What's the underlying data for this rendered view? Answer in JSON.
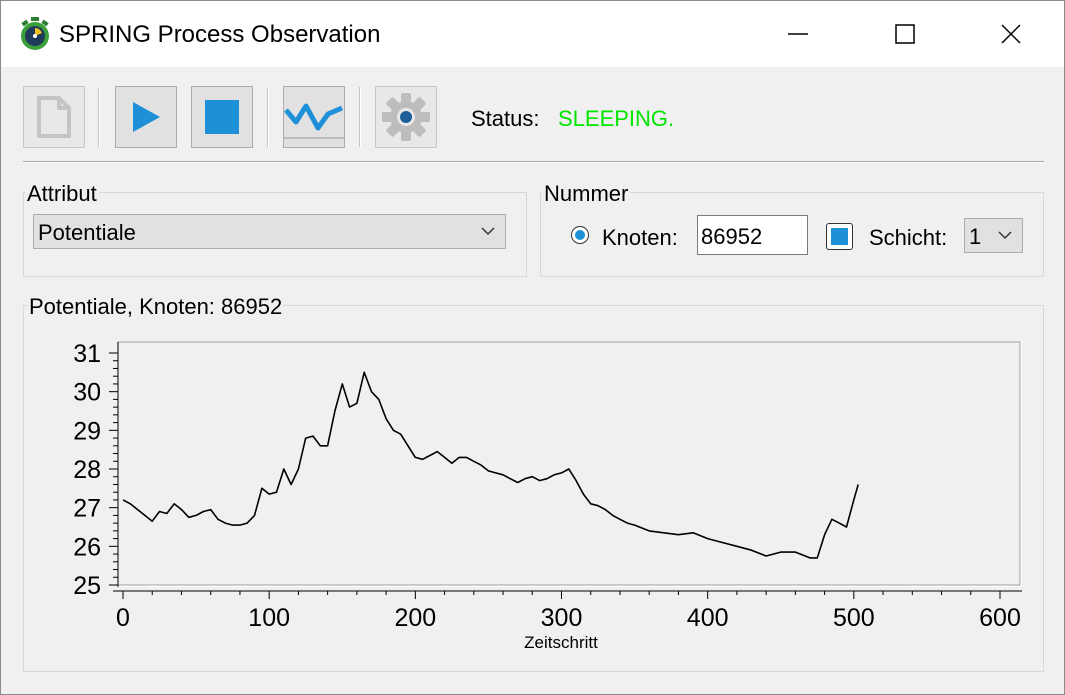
{
  "window": {
    "title": "SPRING Process Observation",
    "icon": "stopwatch-icon",
    "controls": [
      "minimize-icon",
      "maximize-icon",
      "close-icon"
    ]
  },
  "toolbar": {
    "buttons": [
      {
        "name": "new-document",
        "icon": "document-icon",
        "enabled": false
      },
      {
        "name": "play",
        "icon": "play-icon",
        "enabled": true
      },
      {
        "name": "stop",
        "icon": "stop-icon",
        "enabled": true
      },
      {
        "name": "chart",
        "icon": "line-chart-icon",
        "enabled": true
      },
      {
        "name": "settings",
        "icon": "gear-icon",
        "enabled": false
      }
    ],
    "status_label": "Status:",
    "status_value": "SLEEPING.",
    "status_color": "#00e600"
  },
  "attribut": {
    "title": "Attribut",
    "selected": "Potentiale"
  },
  "nummer": {
    "title": "Nummer",
    "knoten_label": "Knoten:",
    "knoten_value": "86952",
    "knoten_selected": true,
    "schicht_checked": true,
    "schicht_label": "Schicht:",
    "schicht_value": "1"
  },
  "accent_color": "#1e90d8",
  "chart_panel_title": "Potentiale, Knoten: 86952",
  "chart_data": {
    "type": "line",
    "title": "",
    "xlabel": "Zeitschritt",
    "ylabel": "",
    "xlim": [
      0,
      600
    ],
    "ylim": [
      25,
      31
    ],
    "xticks": [
      0,
      100,
      200,
      300,
      400,
      500,
      600
    ],
    "yticks": [
      25,
      26,
      27,
      28,
      29,
      30,
      31
    ],
    "grid": false,
    "series": [
      {
        "color": "#000000",
        "x": [
          0,
          5,
          10,
          15,
          20,
          25,
          30,
          35,
          40,
          45,
          50,
          55,
          60,
          65,
          70,
          75,
          80,
          85,
          90,
          95,
          100,
          105,
          110,
          115,
          120,
          125,
          130,
          135,
          140,
          145,
          150,
          155,
          160,
          165,
          170,
          175,
          180,
          185,
          190,
          195,
          200,
          205,
          210,
          215,
          220,
          225,
          230,
          235,
          240,
          245,
          250,
          255,
          260,
          265,
          270,
          275,
          280,
          285,
          290,
          295,
          300,
          305,
          310,
          315,
          320,
          325,
          330,
          335,
          340,
          345,
          350,
          360,
          370,
          380,
          390,
          400,
          410,
          420,
          430,
          440,
          450,
          460,
          470,
          475,
          480,
          485,
          490,
          495,
          500,
          503
        ],
        "values": [
          27.2,
          27.1,
          26.95,
          26.8,
          26.65,
          26.9,
          26.85,
          27.1,
          26.95,
          26.75,
          26.8,
          26.9,
          26.95,
          26.7,
          26.6,
          26.55,
          26.55,
          26.6,
          26.8,
          27.5,
          27.35,
          27.4,
          28.0,
          27.6,
          28.0,
          28.8,
          28.85,
          28.6,
          28.6,
          29.5,
          30.2,
          29.6,
          29.7,
          30.5,
          30.0,
          29.8,
          29.3,
          29.0,
          28.9,
          28.6,
          28.3,
          28.25,
          28.35,
          28.45,
          28.3,
          28.15,
          28.3,
          28.3,
          28.2,
          28.1,
          27.95,
          27.9,
          27.85,
          27.75,
          27.65,
          27.75,
          27.8,
          27.7,
          27.75,
          27.85,
          27.9,
          28.0,
          27.7,
          27.35,
          27.1,
          27.05,
          26.95,
          26.8,
          26.7,
          26.6,
          26.55,
          26.4,
          26.35,
          26.3,
          26.35,
          26.2,
          26.1,
          26.0,
          25.9,
          25.75,
          25.85,
          25.85,
          25.7,
          25.7,
          26.3,
          26.7,
          26.6,
          26.5,
          27.2,
          27.6
        ]
      }
    ]
  }
}
